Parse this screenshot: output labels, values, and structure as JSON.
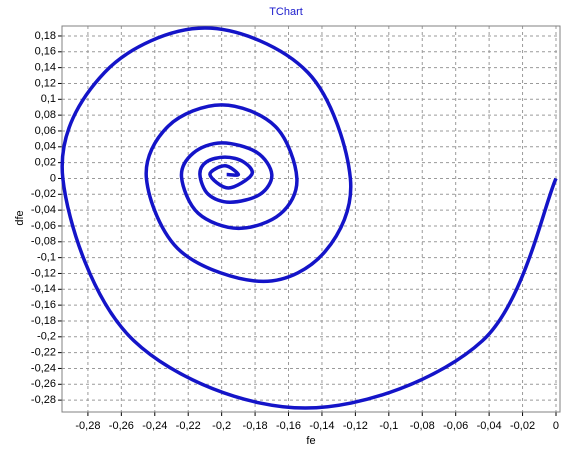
{
  "chart_data": {
    "type": "line",
    "title": "TChart",
    "x_label": "fe",
    "y_label": "dfe",
    "color": "#1414c8",
    "grid": true,
    "x": [
      0,
      -0.044,
      -0.15,
      -0.2525,
      -0.295,
      -0.27,
      -0.21,
      -0.1485,
      -0.123,
      -0.138,
      -0.175,
      -0.2245,
      -0.245,
      -0.232,
      -0.2,
      -0.168,
      -0.155,
      -0.165,
      -0.19,
      -0.214,
      -0.224,
      -0.217,
      -0.2,
      -0.179,
      -0.17,
      -0.177,
      -0.195,
      -0.208,
      -0.213,
      -0.209,
      -0.198,
      -0.187,
      -0.182,
      -0.196,
      -0.207,
      -0.198,
      -0.19,
      -0.197
    ],
    "values": [
      0,
      -0.205,
      -0.29,
      -0.205,
      0,
      0.134,
      0.19,
      0.134,
      0,
      -0.092,
      -0.13,
      -0.092,
      0,
      0.066,
      0.093,
      0.066,
      0,
      -0.045,
      -0.063,
      -0.044,
      0.002,
      0.032,
      0.045,
      0.033,
      0.005,
      -0.02,
      -0.03,
      -0.02,
      0.005,
      0.021,
      0.027,
      0.021,
      0.005,
      -0.012,
      0.005,
      0.016,
      0.005,
      0.005
    ],
    "xlim": [
      -0.2955,
      0.0024
    ],
    "ylim": [
      -0.295,
      0.1926
    ],
    "xticks": [
      {
        "value": -0.28,
        "label": "-0,28"
      },
      {
        "value": -0.26,
        "label": "-0,26"
      },
      {
        "value": -0.24,
        "label": "-0,24"
      },
      {
        "value": -0.22,
        "label": "-0,22"
      },
      {
        "value": -0.2,
        "label": "-0,2"
      },
      {
        "value": -0.18,
        "label": "-0,18"
      },
      {
        "value": -0.16,
        "label": "-0,16"
      },
      {
        "value": -0.14,
        "label": "-0,14"
      },
      {
        "value": -0.12,
        "label": "-0,12"
      },
      {
        "value": -0.1,
        "label": "-0,1"
      },
      {
        "value": -0.08,
        "label": "-0,08"
      },
      {
        "value": -0.06,
        "label": "-0,06"
      },
      {
        "value": -0.04,
        "label": "-0,04"
      },
      {
        "value": -0.02,
        "label": "-0,02"
      },
      0
    ],
    "yticks": [
      {
        "value": -0.28,
        "label": "-0,28"
      },
      {
        "value": -0.26,
        "label": "-0,26"
      },
      {
        "value": -0.24,
        "label": "-0,24"
      },
      {
        "value": -0.22,
        "label": "-0,22"
      },
      {
        "value": -0.2,
        "label": "-0,2"
      },
      {
        "value": -0.18,
        "label": "-0,18"
      },
      {
        "value": -0.16,
        "label": "-0,16"
      },
      {
        "value": -0.14,
        "label": "-0,14"
      },
      {
        "value": -0.12,
        "label": "-0,12"
      },
      {
        "value": -0.1,
        "label": "-0,1"
      },
      {
        "value": -0.08,
        "label": "-0,08"
      },
      {
        "value": -0.06,
        "label": "-0,06"
      },
      {
        "value": -0.04,
        "label": "-0,04"
      },
      {
        "value": -0.02,
        "label": "-0,02"
      },
      0,
      {
        "value": 0.02,
        "label": "0,02"
      },
      {
        "value": 0.04,
        "label": "0,04"
      },
      {
        "value": 0.06,
        "label": "0,06"
      },
      {
        "value": 0.08,
        "label": "0,08"
      },
      {
        "value": 0.1,
        "label": "0,1"
      },
      {
        "value": 0.12,
        "label": "0,12"
      },
      {
        "value": 0.14,
        "label": "0,14"
      },
      {
        "value": 0.16,
        "label": "0,16"
      },
      {
        "value": 0.18,
        "label": "0,18"
      }
    ]
  }
}
